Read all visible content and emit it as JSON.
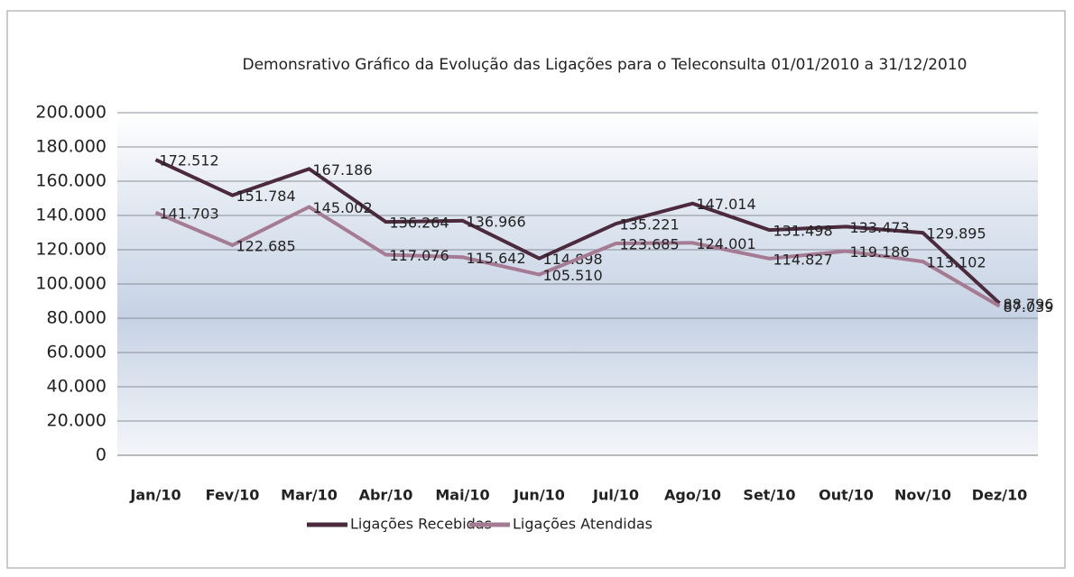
{
  "chart_data": {
    "type": "line",
    "title": "Demonsrativo Gráfico da Evolução das Ligações para o Teleconsulta 01/01/2010 a 31/12/2010",
    "categories": [
      "Jan/10",
      "Fev/10",
      "Mar/10",
      "Abr/10",
      "Mai/10",
      "Jun/10",
      "Jul/10",
      "Ago/10",
      "Set/10",
      "Out/10",
      "Nov/10",
      "Dez/10"
    ],
    "series": [
      {
        "name": "Ligações Recebidas",
        "color": "#4a2a3c",
        "values": [
          172512,
          151784,
          167186,
          136264,
          136966,
          114898,
          135221,
          147014,
          131498,
          133473,
          129895,
          88796
        ],
        "value_labels": [
          "172.512",
          "151.784",
          "167.186",
          "136.264",
          "136.966",
          "114.898",
          "135.221",
          "147.014",
          "131.498",
          "133.473",
          "129.895",
          "88.796"
        ]
      },
      {
        "name": "Ligações Atendidas",
        "color": "#a57a93",
        "values": [
          141703,
          122685,
          145002,
          117076,
          115642,
          105510,
          123685,
          124001,
          114827,
          119186,
          113102,
          87039
        ],
        "value_labels": [
          "141.703",
          "122.685",
          "145.002",
          "117.076",
          "115.642",
          "105.510",
          "123.685",
          "124.001",
          "114.827",
          "119.186",
          "113.102",
          "87.039"
        ]
      }
    ],
    "ylim": [
      0,
      200000
    ],
    "yticks": [
      0,
      {
        "value": 20000,
        "label": "20.000"
      },
      {
        "value": 40000,
        "label": "40.000"
      },
      {
        "value": 60000,
        "label": "60.000"
      },
      {
        "value": 80000,
        "label": "80.000"
      },
      {
        "value": 100000,
        "label": "100.000"
      },
      {
        "value": 120000,
        "label": "120.000"
      },
      {
        "value": 140000,
        "label": "140.000"
      },
      {
        "value": 160000,
        "label": "160.000"
      },
      {
        "value": 180000,
        "label": "180.000"
      },
      {
        "value": 200000,
        "label": "200.000"
      }
    ],
    "grid": true,
    "legend": "bottom"
  }
}
